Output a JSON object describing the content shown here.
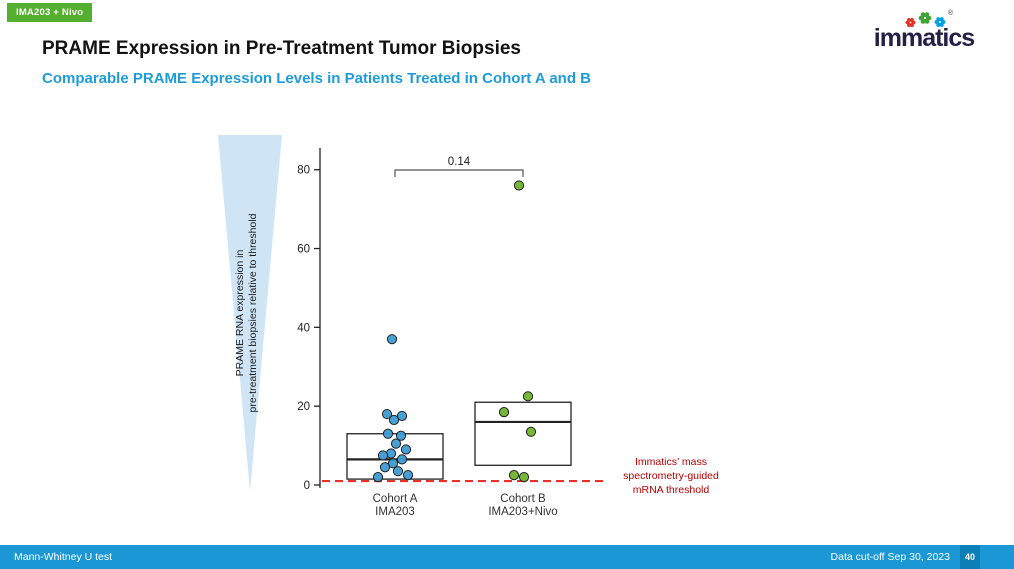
{
  "tag": {
    "label": "IMA203 + Nivo"
  },
  "header": {
    "title": "PRAME Expression in Pre-Treatment Tumor Biopsies",
    "subtitle": "Comparable PRAME Expression Levels in Patients Treated in Cohort A and B"
  },
  "logo": {
    "wordmark": "immatics",
    "registered": "®"
  },
  "y_axis_label": {
    "line1": "PRAME RNA expression in",
    "line2": "pre-treatment biopsies relative to threshold"
  },
  "threshold_annotation": {
    "line1": "Immatics’ mass",
    "line2": "spectrometry-guided",
    "line3": "mRNA threshold"
  },
  "footer": {
    "left": "Mann-Whitney U test",
    "right": "Data cut-off Sep 30, 2023",
    "page": "40"
  },
  "colors": {
    "accent_blue": "#1e9cd7",
    "tag_green": "#54ae2f",
    "footer_blue": "#1a97d4",
    "threshold_red": "#e8312b",
    "funnel_blue": "#cfe5f6",
    "annotation_red": "#b30000",
    "cohort_a_blue": "#3d9bd3",
    "cohort_b_green": "#6fb32d"
  },
  "chart_data": {
    "type": "boxplot-scatter",
    "title": "PRAME Expression in Pre-Treatment Tumor Biopsies",
    "ylabel": "PRAME RNA expression in pre-treatment biopsies relative to threshold",
    "ylim": [
      0,
      85
    ],
    "yticks": [
      0,
      20,
      40,
      60,
      80
    ],
    "grid": false,
    "legend": "none",
    "p_value_label": "0.14",
    "threshold_value": 1,
    "groups": [
      {
        "label1": "Cohort A",
        "label2": "IMA203",
        "color": "#3d9bd3",
        "box": {
          "q1": 1.5,
          "median": 6.5,
          "q3": 13
        },
        "points": [
          37,
          18,
          17.5,
          16.5,
          13,
          12.5,
          10.5,
          9,
          8,
          7.5,
          6.5,
          5.5,
          4.5,
          3.5,
          2.5,
          2
        ]
      },
      {
        "label1": "Cohort B",
        "label2": "IMA203+Nivo",
        "color": "#6fb32d",
        "box": {
          "q1": 5,
          "median": 16,
          "q3": 21
        },
        "points": [
          76,
          22.5,
          18.5,
          13.5,
          2.5,
          2
        ]
      }
    ]
  }
}
